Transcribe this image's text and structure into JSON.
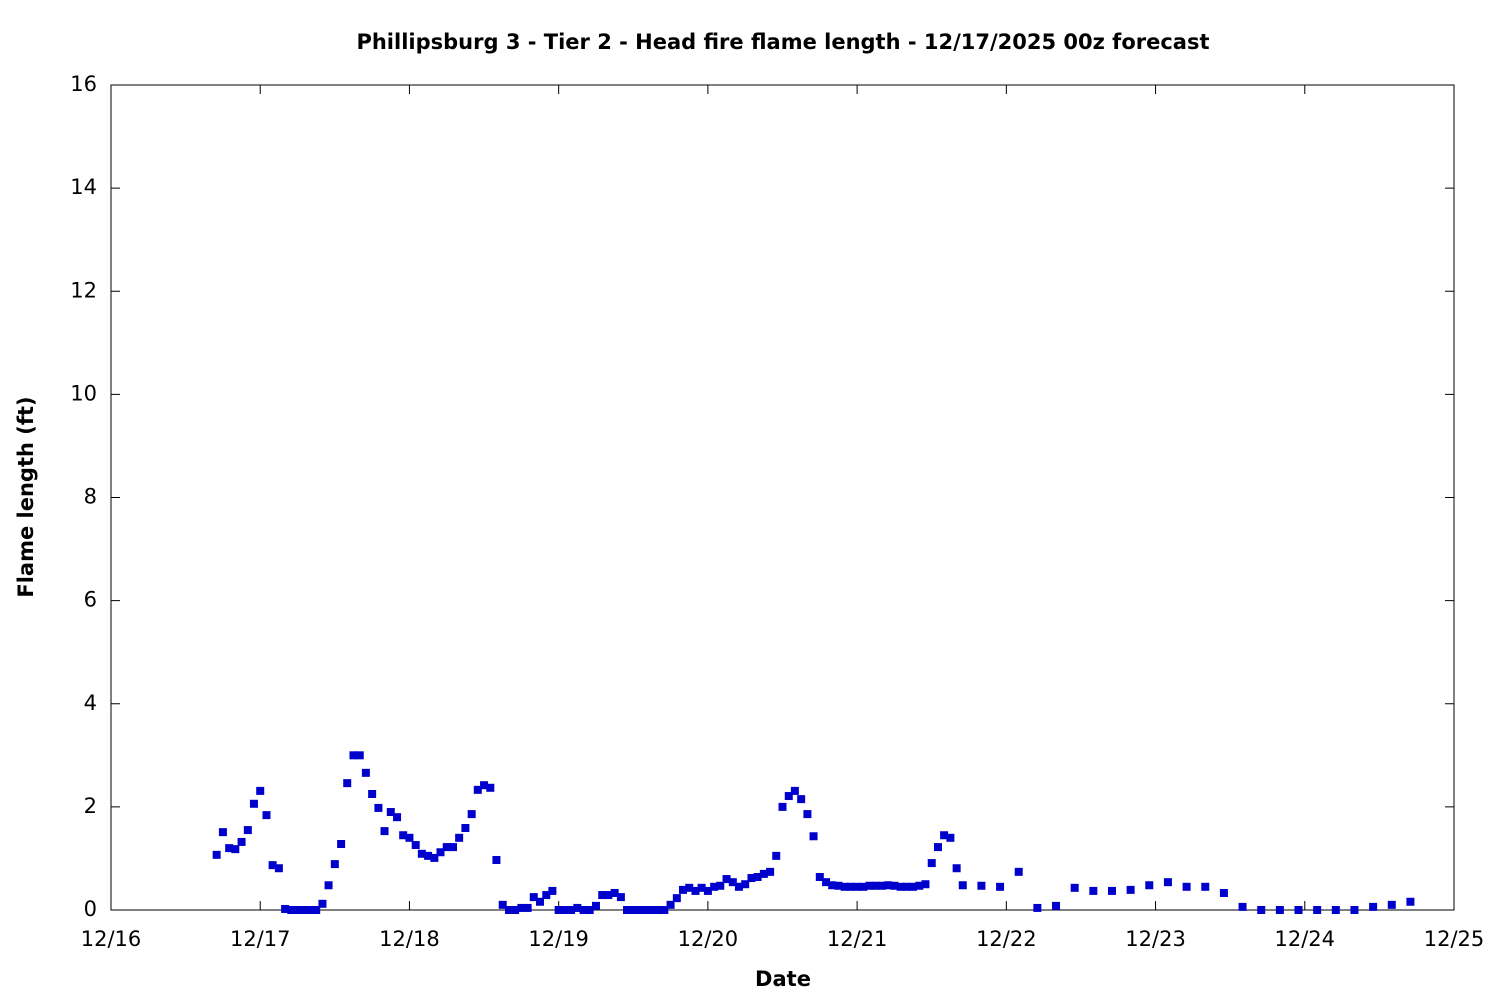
{
  "chart_data": {
    "type": "scatter",
    "title": "Phillipsburg 3 - Tier 2 - Head fire flame length - 12/17/2025 00z forecast",
    "xlabel": "Date",
    "ylabel": "Flame length (ft)",
    "color": "#0000cc",
    "xlim": [
      16,
      25
    ],
    "xticks": [
      {
        "value": 16,
        "label": "12/16"
      },
      {
        "value": 17,
        "label": "12/17"
      },
      {
        "value": 18,
        "label": "12/18"
      },
      {
        "value": 19,
        "label": "12/19"
      },
      {
        "value": 20,
        "label": "12/20"
      },
      {
        "value": 21,
        "label": "12/21"
      },
      {
        "value": 22,
        "label": "12/22"
      },
      {
        "value": 23,
        "label": "12/23"
      },
      {
        "value": 24,
        "label": "12/24"
      },
      {
        "value": 25,
        "label": "12/25"
      }
    ],
    "ylim": [
      0,
      16
    ],
    "yticks": [
      0,
      2,
      4,
      6,
      8,
      10,
      12,
      14,
      16
    ],
    "x": [
      16.708,
      16.75,
      16.792,
      16.833,
      16.875,
      16.917,
      16.958,
      17,
      17.042,
      17.083,
      17.125,
      17.167,
      17.208,
      17.25,
      17.292,
      17.333,
      17.375,
      17.417,
      17.458,
      17.5,
      17.542,
      17.583,
      17.625,
      17.667,
      17.708,
      17.75,
      17.792,
      17.833,
      17.875,
      17.917,
      17.958,
      18,
      18.042,
      18.083,
      18.125,
      18.167,
      18.208,
      18.25,
      18.292,
      18.333,
      18.375,
      18.417,
      18.458,
      18.5,
      18.542,
      18.583,
      18.625,
      18.667,
      18.708,
      18.75,
      18.792,
      18.833,
      18.875,
      18.917,
      18.958,
      19,
      19.042,
      19.083,
      19.125,
      19.167,
      19.208,
      19.25,
      19.292,
      19.333,
      19.375,
      19.417,
      19.458,
      19.5,
      19.542,
      19.583,
      19.625,
      19.667,
      19.708,
      19.75,
      19.792,
      19.833,
      19.875,
      19.917,
      19.958,
      20,
      20.042,
      20.083,
      20.125,
      20.167,
      20.208,
      20.25,
      20.292,
      20.333,
      20.375,
      20.417,
      20.458,
      20.5,
      20.542,
      20.583,
      20.625,
      20.667,
      20.708,
      20.75,
      20.792,
      20.833,
      20.875,
      20.917,
      20.958,
      21,
      21.042,
      21.083,
      21.125,
      21.167,
      21.208,
      21.25,
      21.292,
      21.333,
      21.375,
      21.417,
      21.458,
      21.5,
      21.542,
      21.583,
      21.625,
      21.667,
      21.708,
      21.833,
      21.958,
      22.083,
      22.208,
      22.333,
      22.458,
      22.583,
      22.708,
      22.833,
      22.958,
      23.083,
      23.208,
      23.333,
      23.458,
      23.583,
      23.708,
      23.833,
      23.958,
      24.083,
      24.208,
      24.333,
      24.458,
      24.583,
      24.708
    ],
    "values": [
      1.07,
      1.51,
      1.2,
      1.18,
      1.32,
      1.55,
      2.06,
      2.31,
      1.84,
      0.87,
      0.81,
      0.02,
      0,
      0,
      0,
      0,
      0,
      0.12,
      0.48,
      0.89,
      1.28,
      2.46,
      3.0,
      3.0,
      2.66,
      2.25,
      1.98,
      1.53,
      1.9,
      1.8,
      1.45,
      1.4,
      1.26,
      1.09,
      1.05,
      1.01,
      1.12,
      1.22,
      1.22,
      1.4,
      1.59,
      1.86,
      2.33,
      2.42,
      2.37,
      0.97,
      0.1,
      0,
      0,
      0.04,
      0.04,
      0.25,
      0.16,
      0.29,
      0.37,
      0,
      0,
      0,
      0.04,
      0,
      0,
      0.08,
      0.29,
      0.29,
      0.33,
      0.25,
      0,
      0,
      0,
      0,
      0,
      0,
      0,
      0.1,
      0.23,
      0.39,
      0.43,
      0.37,
      0.43,
      0.37,
      0.45,
      0.47,
      0.6,
      0.54,
      0.45,
      0.5,
      0.62,
      0.64,
      0.7,
      0.74,
      1.05,
      2.0,
      2.21,
      2.31,
      2.15,
      1.86,
      1.43,
      0.64,
      0.54,
      0.48,
      0.47,
      0.45,
      0.45,
      0.45,
      0.45,
      0.47,
      0.47,
      0.47,
      0.48,
      0.47,
      0.45,
      0.45,
      0.45,
      0.47,
      0.5,
      0.91,
      1.22,
      1.45,
      1.4,
      0.81,
      0.48,
      0.47,
      0.45,
      0.74,
      0.04,
      0.08,
      0.43,
      0.37,
      0.37,
      0.39,
      0.48,
      0.54,
      0.45,
      0.45,
      0.33,
      0.06,
      0,
      0,
      0,
      0,
      0,
      0,
      0.06,
      0.1,
      0.16
    ]
  }
}
